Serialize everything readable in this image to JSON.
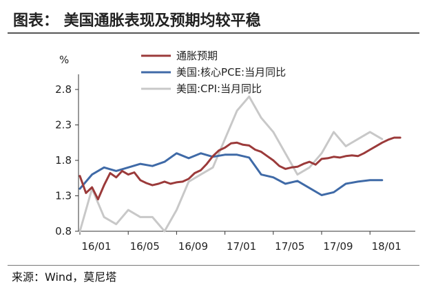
{
  "header": {
    "title": "图表：  美国通胀表现及预期均较平稳"
  },
  "footer": {
    "source": "来源：Wind，莫尼塔"
  },
  "chart_data": {
    "type": "line",
    "title": "图表：  美国通胀表现及预期均较平稳",
    "ylabel": "%",
    "xlabel": "",
    "ylim": [
      0.8,
      2.8
    ],
    "yticks": [
      "2.8",
      "2.3",
      "1.8",
      "1.3",
      "0.8"
    ],
    "ytick_values": [
      2.8,
      2.3,
      1.8,
      1.3,
      0.8
    ],
    "xticks": [
      "16/01",
      "16/05",
      "16/09",
      "17/01",
      "17/05",
      "17/09",
      "18/01"
    ],
    "xtick_months": [
      0,
      4,
      8,
      12,
      16,
      20,
      24
    ],
    "grid": false,
    "legend": "top-center",
    "series": [
      {
        "name": "通胀预期",
        "color": "#9b3a3a",
        "x": [
          0,
          0.5,
          1,
          1.5,
          2,
          2.5,
          3,
          3.5,
          4,
          4.5,
          5,
          5.5,
          6,
          6.5,
          7,
          7.5,
          8,
          8.5,
          9,
          9.5,
          10,
          10.5,
          11,
          11.5,
          12,
          12.5,
          13,
          13.5,
          14,
          14.5,
          15,
          15.5,
          16,
          16.5,
          17,
          17.5,
          18,
          18.5,
          19,
          19.5,
          20,
          20.5,
          21,
          21.5,
          22,
          22.5,
          23,
          23.5,
          24,
          24.5,
          25,
          25.5,
          26,
          26.5
        ],
        "values": [
          1.58,
          1.34,
          1.42,
          1.25,
          1.45,
          1.62,
          1.56,
          1.65,
          1.6,
          1.63,
          1.52,
          1.48,
          1.45,
          1.47,
          1.5,
          1.47,
          1.49,
          1.5,
          1.54,
          1.62,
          1.66,
          1.75,
          1.86,
          1.94,
          1.98,
          2.04,
          2.05,
          2.02,
          2.01,
          1.95,
          1.92,
          1.86,
          1.8,
          1.72,
          1.68,
          1.7,
          1.71,
          1.75,
          1.78,
          1.74,
          1.82,
          1.83,
          1.85,
          1.84,
          1.86,
          1.87,
          1.86,
          1.9,
          1.95,
          2.0,
          2.05,
          2.09,
          2.12,
          2.12
        ]
      },
      {
        "name": "美国:核心PCE:当月同比",
        "color": "#3f6aa7",
        "x": [
          0,
          1,
          2,
          3,
          4,
          5,
          6,
          7,
          8,
          9,
          10,
          11,
          12,
          13,
          14,
          15,
          16,
          17,
          18,
          19,
          20,
          21,
          22,
          23,
          24,
          25
        ],
        "values": [
          1.4,
          1.6,
          1.7,
          1.65,
          1.7,
          1.75,
          1.72,
          1.78,
          1.9,
          1.83,
          1.9,
          1.85,
          1.88,
          1.88,
          1.84,
          1.6,
          1.56,
          1.47,
          1.51,
          1.41,
          1.31,
          1.35,
          1.47,
          1.5,
          1.52,
          1.52
        ]
      },
      {
        "name": "美国:CPI:当月同比",
        "color": "#c8c8c8",
        "x": [
          0,
          1,
          2,
          3,
          4,
          5,
          6,
          7,
          8,
          9,
          10,
          11,
          12,
          13,
          14,
          15,
          16,
          17,
          18,
          19,
          20,
          21,
          22,
          23,
          24,
          25
        ],
        "values": [
          0.8,
          1.4,
          1.0,
          0.9,
          1.1,
          1.0,
          1.0,
          0.8,
          1.1,
          1.5,
          1.6,
          1.7,
          2.1,
          2.5,
          2.7,
          2.4,
          2.2,
          1.9,
          1.6,
          1.7,
          1.9,
          2.2,
          2.0,
          2.1,
          2.2,
          2.1
        ]
      }
    ]
  }
}
